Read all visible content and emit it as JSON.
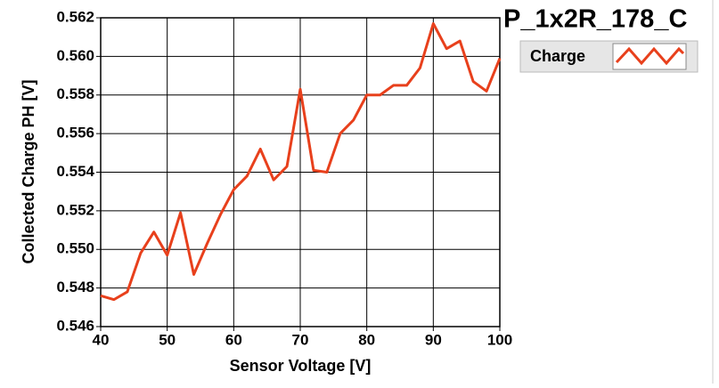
{
  "chart_data": {
    "type": "line",
    "title": "P_1x2R_178_C",
    "x_label": "Sensor Voltage [V]",
    "y_label": "Collected Charge PH [V]",
    "x": [
      40,
      42,
      44,
      46,
      48,
      50,
      52,
      54,
      56,
      58,
      60,
      62,
      64,
      66,
      68,
      70,
      72,
      74,
      76,
      78,
      80,
      82,
      84,
      86,
      88,
      90,
      92,
      94,
      96,
      98,
      100
    ],
    "series": [
      {
        "name": "Charge",
        "color": "#e8401c",
        "values": [
          0.5476,
          0.5474,
          0.5478,
          0.5498,
          0.5509,
          0.5497,
          0.5519,
          0.5487,
          0.5503,
          0.5518,
          0.5531,
          0.5538,
          0.5552,
          0.5536,
          0.5543,
          0.5583,
          0.5541,
          0.554,
          0.556,
          0.5567,
          0.558,
          0.558,
          0.5585,
          0.5585,
          0.5594,
          0.5617,
          0.5604,
          0.5608,
          0.5587,
          0.5582,
          0.5599
        ]
      }
    ],
    "xlim": [
      40,
      100
    ],
    "xticks": [
      40,
      50,
      60,
      70,
      80,
      90,
      100
    ],
    "ylim": [
      0.546,
      0.562
    ],
    "yticks": [
      {
        "value": 0.546,
        "label": "0.546"
      },
      {
        "value": 0.548,
        "label": "0.548"
      },
      {
        "value": 0.55,
        "label": "0.550"
      },
      {
        "value": 0.552,
        "label": "0.552"
      },
      {
        "value": 0.554,
        "label": "0.554"
      },
      {
        "value": 0.556,
        "label": "0.556"
      },
      {
        "value": 0.558,
        "label": "0.558"
      },
      {
        "value": 0.56,
        "label": "0.560"
      },
      {
        "value": 0.562,
        "label": "0.562"
      }
    ],
    "grid": true
  }
}
